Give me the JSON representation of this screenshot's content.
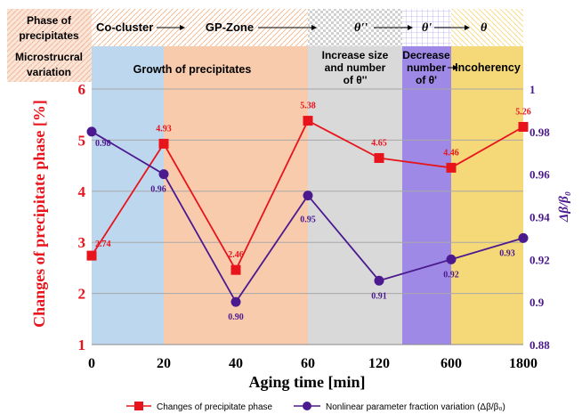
{
  "header": {
    "row1_label_line1": "Phase of",
    "row1_label_line2": "precipitates",
    "row2_label_line1": "Microstrucral",
    "row2_label_line2": "variation",
    "phases": [
      "Co-cluster",
      "GP-Zone",
      "θ''",
      "θ'",
      "θ"
    ],
    "variations": {
      "growth": "Growth of precipitates",
      "increase_line1": "Increase size",
      "increase_line2": "and number",
      "increase_line3": "of  θ''",
      "decrease_line1": "Decrease",
      "decrease_line2": "number",
      "decrease_line3": "of  θ'",
      "incoherency": "Incoherency"
    }
  },
  "colors": {
    "red": "#e8141c",
    "purple": "#4b1a8f",
    "band_blue": "#bdd7ee",
    "band_orange": "#f8cbad",
    "band_gray": "#d9d9d9",
    "band_violet": "#9e8ae6",
    "band_yellow": "#f5d878"
  },
  "chart_data": {
    "type": "line",
    "categories": [
      "0",
      "20",
      "40",
      "60",
      "120",
      "600",
      "1800"
    ],
    "xlabel": "Aging time [min]",
    "ylabel_left": "Changes of precipitate phase [%]",
    "ylabel_right": "Δβ/β₀",
    "ylim_left": [
      1,
      6
    ],
    "ylim_right": [
      0.88,
      1.0
    ],
    "left_ticks": [
      "1",
      "2",
      "3",
      "4",
      "5",
      "6"
    ],
    "right_ticks": [
      "0.88",
      "0.9",
      "0.92",
      "0.94",
      "0.96",
      "0.98",
      "1"
    ],
    "grid": true,
    "legend_position": "bottom",
    "series": [
      {
        "name": "Changes of precipitate phase",
        "axis": "left",
        "values": [
          2.74,
          4.93,
          2.46,
          5.38,
          4.65,
          4.46,
          5.26
        ],
        "labels": [
          "2.74",
          "4.93",
          "2.46",
          "5.38",
          "4.65",
          "4.46",
          "5.26"
        ]
      },
      {
        "name": "Nonlinear parameter fraction variation (Δβ/β₀)",
        "axis": "right",
        "values": [
          0.98,
          0.96,
          0.9,
          0.95,
          0.91,
          0.92,
          0.93
        ],
        "labels": [
          "0.98",
          "0.96",
          "0.90",
          "0.95",
          "0.91",
          "0.92",
          "0.93"
        ]
      }
    ]
  }
}
